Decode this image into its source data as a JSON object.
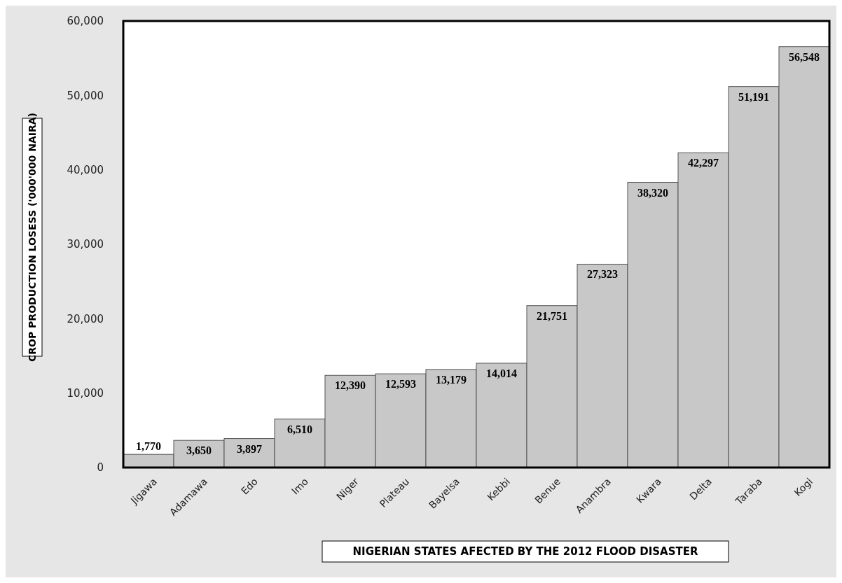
{
  "chart_data": {
    "type": "bar",
    "xlabel": "NIGERIAN STATES AFECTED BY THE 2012 FLOOD DISASTER",
    "ylabel": "CROP PRODUCTION LOSESS ('000'000 NAIRA)",
    "categories": [
      "Jigawa",
      "Adamawa",
      "Edo",
      "Imo",
      "Niger",
      "Plateau",
      "Bayelsa",
      "Kebbi",
      "Benue",
      "Anambra",
      "Kwara",
      "Delta",
      "Taraba",
      "Kogi"
    ],
    "values": [
      1770,
      3650,
      3897,
      6510,
      12390,
      12593,
      13179,
      14014,
      21751,
      27323,
      38320,
      42297,
      51191,
      56548
    ],
    "color": "#c8c8c8",
    "ylim": [
      0,
      60000
    ],
    "yticks": [
      {
        "value": 0,
        "label": "0"
      },
      {
        "value": 10000,
        "label": "10,000"
      },
      {
        "value": 20000,
        "label": "20,000"
      },
      {
        "value": 30000,
        "label": "30,000"
      },
      {
        "value": 40000,
        "label": "40,000"
      },
      {
        "value": 50000,
        "label": "50,000"
      },
      {
        "value": 60000,
        "label": "60,000"
      }
    ],
    "value_labels": [
      "1,770",
      "3,650",
      "3,897",
      "6,510",
      "12,390",
      "12,593",
      "13,179",
      "14,014",
      "21,751",
      "27,323",
      "38,320",
      "42,297",
      "51,191",
      "56,548"
    ],
    "grid": false
  }
}
